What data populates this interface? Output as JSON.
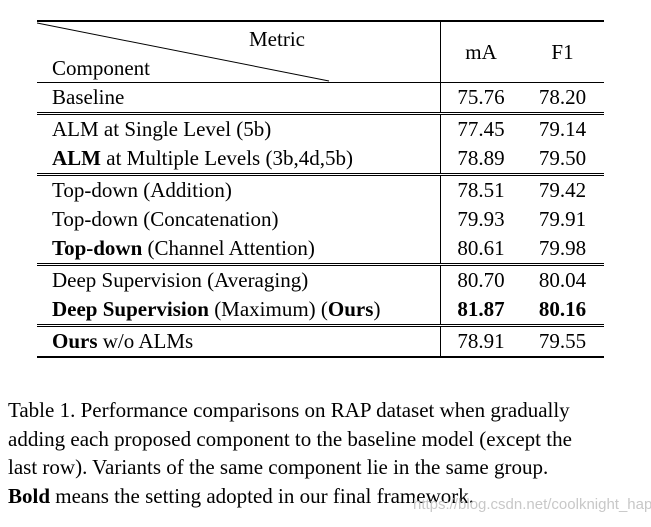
{
  "table": {
    "header": {
      "metric_label": "Metric",
      "component_label": "Component",
      "col_ma": "mA",
      "col_f1": "F1"
    },
    "rows": [
      {
        "bold": "",
        "rest": "Baseline",
        "ma": "75.76",
        "f1": "78.20",
        "group_start": false
      },
      {
        "bold": "",
        "rest": "ALM at Single Level (5b)",
        "ma": "77.45",
        "f1": "79.14",
        "group_start": true
      },
      {
        "bold": "ALM",
        "rest": " at Multiple Levels (3b,4d,5b)",
        "ma": "78.89",
        "f1": "79.50",
        "group_start": false
      },
      {
        "bold": "",
        "rest": "Top-down (Addition)",
        "ma": "78.51",
        "f1": "79.42",
        "group_start": true
      },
      {
        "bold": "",
        "rest": "Top-down (Concatenation)",
        "ma": "79.93",
        "f1": "79.91",
        "group_start": false
      },
      {
        "bold": "Top-down",
        "rest": " (Channel Attention)",
        "ma": "80.61",
        "f1": "79.98",
        "group_start": false
      },
      {
        "bold": "",
        "rest": "Deep Supervision (Averaging)",
        "ma": "80.70",
        "f1": "80.04",
        "group_start": true
      },
      {
        "bold": "Deep Supervision",
        "rest": " (Maximum) (",
        "bold2": "Ours",
        "rest2": ")",
        "ma": "81.87",
        "f1": "80.16",
        "values_bold": true,
        "group_start": false
      },
      {
        "bold": "Ours",
        "rest": " w/o ALMs",
        "ma": "78.91",
        "f1": "79.55",
        "group_start": true
      }
    ]
  },
  "caption": {
    "line1": "Table 1. Performance comparisons on RAP dataset when gradually",
    "line2": "adding each proposed component to the baseline model (except the",
    "line3": "last row). Variants of the same component lie in the same group.",
    "line4_bold": "Bold",
    "line4_rest": " means the setting adopted in our final framework."
  },
  "watermark": "https://blog.csdn.net/coolknight_happy"
}
